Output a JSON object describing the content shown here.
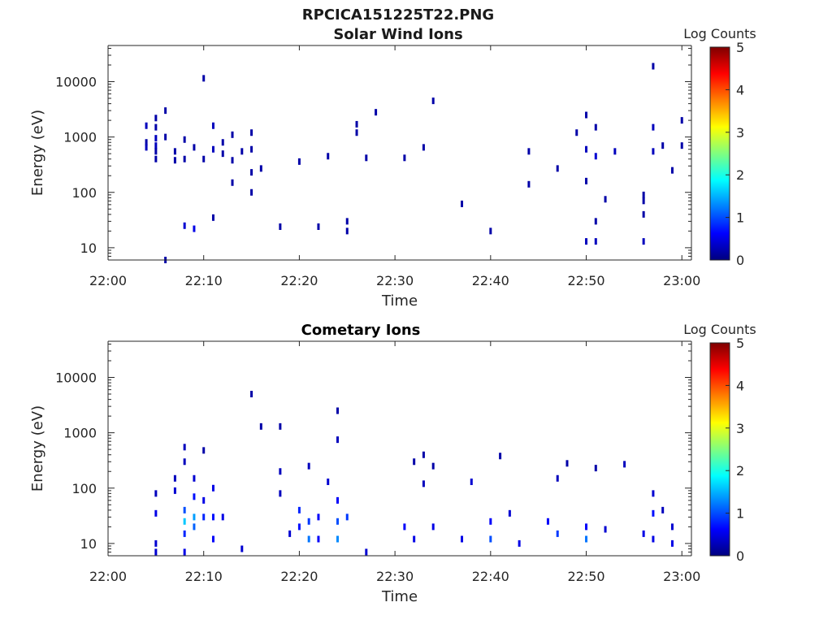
{
  "title": "RPCICA151225T22.PNG",
  "colors": {
    "axis": "#262626",
    "text": "#262626"
  },
  "colorbar": {
    "label": "Log Counts",
    "ticks": [
      "0",
      "1",
      "2",
      "3",
      "4",
      "5"
    ],
    "range": [
      0,
      5
    ]
  },
  "chart_data": [
    {
      "type": "heatmap",
      "title": "Solar Wind Ions",
      "xlabel": "Time",
      "ylabel": "Energy (eV)",
      "yscale": "log",
      "ylim": [
        6,
        45000
      ],
      "xlim": [
        "22:00",
        "23:01"
      ],
      "xticks": [
        "22:00",
        "22:10",
        "22:20",
        "22:30",
        "22:40",
        "22:50",
        "23:00"
      ],
      "yticks": [
        "10",
        "100",
        "1000",
        "10000"
      ],
      "cells": [
        {
          "t": "22:04",
          "e": 1600,
          "v": 0.3
        },
        {
          "t": "22:04",
          "e": 800,
          "v": 0.2
        },
        {
          "t": "22:04",
          "e": 650,
          "v": 0.3
        },
        {
          "t": "22:05",
          "e": 1500,
          "v": 0.2
        },
        {
          "t": "22:05",
          "e": 950,
          "v": 0.3
        },
        {
          "t": "22:05",
          "e": 700,
          "v": 0.3
        },
        {
          "t": "22:05",
          "e": 550,
          "v": 0.2
        },
        {
          "t": "22:05",
          "e": 400,
          "v": 0.2
        },
        {
          "t": "22:05",
          "e": 2200,
          "v": 0.2
        },
        {
          "t": "22:06",
          "e": 3000,
          "v": 0.2
        },
        {
          "t": "22:06",
          "e": 1000,
          "v": 0.2
        },
        {
          "t": "22:06",
          "e": 6,
          "v": 0.2
        },
        {
          "t": "22:07",
          "e": 550,
          "v": 0.2
        },
        {
          "t": "22:07",
          "e": 380,
          "v": 0.2
        },
        {
          "t": "22:08",
          "e": 900,
          "v": 0.2
        },
        {
          "t": "22:08",
          "e": 400,
          "v": 0.2
        },
        {
          "t": "22:08",
          "e": 25,
          "v": 0.4
        },
        {
          "t": "22:09",
          "e": 22,
          "v": 0.5
        },
        {
          "t": "22:09",
          "e": 650,
          "v": 0.2
        },
        {
          "t": "22:10",
          "e": 400,
          "v": 0.2
        },
        {
          "t": "22:10",
          "e": 11500,
          "v": 0.2
        },
        {
          "t": "22:11",
          "e": 1600,
          "v": 0.3
        },
        {
          "t": "22:11",
          "e": 600,
          "v": 0.3
        },
        {
          "t": "22:11",
          "e": 35,
          "v": 0.2
        },
        {
          "t": "22:12",
          "e": 500,
          "v": 0.2
        },
        {
          "t": "22:12",
          "e": 800,
          "v": 0.2
        },
        {
          "t": "22:13",
          "e": 1100,
          "v": 0.2
        },
        {
          "t": "22:13",
          "e": 380,
          "v": 0.2
        },
        {
          "t": "22:13",
          "e": 150,
          "v": 0.2
        },
        {
          "t": "22:14",
          "e": 550,
          "v": 0.2
        },
        {
          "t": "22:15",
          "e": 1200,
          "v": 0.2
        },
        {
          "t": "22:15",
          "e": 600,
          "v": 0.2
        },
        {
          "t": "22:15",
          "e": 100,
          "v": 0.2
        },
        {
          "t": "22:15",
          "e": 230,
          "v": 0.2
        },
        {
          "t": "22:16",
          "e": 270,
          "v": 0.2
        },
        {
          "t": "22:18",
          "e": 24,
          "v": 0.2
        },
        {
          "t": "22:20",
          "e": 360,
          "v": 0.2
        },
        {
          "t": "22:22",
          "e": 24,
          "v": 0.2
        },
        {
          "t": "22:23",
          "e": 450,
          "v": 0.2
        },
        {
          "t": "22:25",
          "e": 30,
          "v": 0.2
        },
        {
          "t": "22:25",
          "e": 20,
          "v": 0.2
        },
        {
          "t": "22:26",
          "e": 1700,
          "v": 0.2
        },
        {
          "t": "22:26",
          "e": 1200,
          "v": 0.2
        },
        {
          "t": "22:27",
          "e": 420,
          "v": 0.2
        },
        {
          "t": "22:28",
          "e": 2800,
          "v": 0.2
        },
        {
          "t": "22:31",
          "e": 420,
          "v": 0.2
        },
        {
          "t": "22:33",
          "e": 650,
          "v": 0.2
        },
        {
          "t": "22:34",
          "e": 4500,
          "v": 0.2
        },
        {
          "t": "22:37",
          "e": 62,
          "v": 0.2
        },
        {
          "t": "22:40",
          "e": 20,
          "v": 0.2
        },
        {
          "t": "22:44",
          "e": 550,
          "v": 0.2
        },
        {
          "t": "22:44",
          "e": 140,
          "v": 0.2
        },
        {
          "t": "22:47",
          "e": 270,
          "v": 0.2
        },
        {
          "t": "22:49",
          "e": 1200,
          "v": 0.2
        },
        {
          "t": "22:50",
          "e": 2500,
          "v": 0.2
        },
        {
          "t": "22:50",
          "e": 600,
          "v": 0.3
        },
        {
          "t": "22:50",
          "e": 13,
          "v": 0.3
        },
        {
          "t": "22:50",
          "e": 160,
          "v": 0.2
        },
        {
          "t": "22:51",
          "e": 450,
          "v": 0.4
        },
        {
          "t": "22:51",
          "e": 30,
          "v": 0.2
        },
        {
          "t": "22:51",
          "e": 13,
          "v": 0.3
        },
        {
          "t": "22:51",
          "e": 1500,
          "v": 0.2
        },
        {
          "t": "22:52",
          "e": 75,
          "v": 0.2
        },
        {
          "t": "22:53",
          "e": 550,
          "v": 0.3
        },
        {
          "t": "22:56",
          "e": 70,
          "v": 0.2
        },
        {
          "t": "22:56",
          "e": 40,
          "v": 0.2
        },
        {
          "t": "22:56",
          "e": 13,
          "v": 0.3
        },
        {
          "t": "22:56",
          "e": 90,
          "v": 0.2
        },
        {
          "t": "22:57",
          "e": 1500,
          "v": 0.3
        },
        {
          "t": "22:57",
          "e": 550,
          "v": 0.3
        },
        {
          "t": "22:57",
          "e": 19000,
          "v": 0.2
        },
        {
          "t": "22:58",
          "e": 700,
          "v": 0.2
        },
        {
          "t": "22:59",
          "e": 250,
          "v": 0.2
        },
        {
          "t": "23:00",
          "e": 2000,
          "v": 0.2
        },
        {
          "t": "23:00",
          "e": 700,
          "v": 0.2
        }
      ]
    },
    {
      "type": "heatmap",
      "title": "Cometary Ions",
      "xlabel": "Time",
      "ylabel": "Energy (eV)",
      "yscale": "log",
      "ylim": [
        6,
        45000
      ],
      "xlim": [
        "22:00",
        "23:01"
      ],
      "xticks": [
        "22:00",
        "22:10",
        "22:20",
        "22:30",
        "22:40",
        "22:50",
        "23:00"
      ],
      "yticks": [
        "10",
        "100",
        "1000",
        "10000"
      ],
      "cells": [
        {
          "t": "22:05",
          "e": 80,
          "v": 0.3
        },
        {
          "t": "22:05",
          "e": 10,
          "v": 0.4
        },
        {
          "t": "22:05",
          "e": 7,
          "v": 0.4
        },
        {
          "t": "22:05",
          "e": 35,
          "v": 0.5
        },
        {
          "t": "22:07",
          "e": 150,
          "v": 0.3
        },
        {
          "t": "22:07",
          "e": 90,
          "v": 0.4
        },
        {
          "t": "22:08",
          "e": 40,
          "v": 1.0
        },
        {
          "t": "22:08",
          "e": 25,
          "v": 1.6
        },
        {
          "t": "22:08",
          "e": 15,
          "v": 0.8
        },
        {
          "t": "22:08",
          "e": 300,
          "v": 0.3
        },
        {
          "t": "22:08",
          "e": 550,
          "v": 0.3
        },
        {
          "t": "22:08",
          "e": 7,
          "v": 0.5
        },
        {
          "t": "22:09",
          "e": 30,
          "v": 1.4
        },
        {
          "t": "22:09",
          "e": 20,
          "v": 1.1
        },
        {
          "t": "22:09",
          "e": 70,
          "v": 0.7
        },
        {
          "t": "22:09",
          "e": 150,
          "v": 0.4
        },
        {
          "t": "22:10",
          "e": 30,
          "v": 0.8
        },
        {
          "t": "22:10",
          "e": 480,
          "v": 0.2
        },
        {
          "t": "22:10",
          "e": 60,
          "v": 0.5
        },
        {
          "t": "22:11",
          "e": 12,
          "v": 0.6
        },
        {
          "t": "22:11",
          "e": 30,
          "v": 0.7
        },
        {
          "t": "22:11",
          "e": 100,
          "v": 0.5
        },
        {
          "t": "22:12",
          "e": 30,
          "v": 0.5
        },
        {
          "t": "22:14",
          "e": 8,
          "v": 0.4
        },
        {
          "t": "22:15",
          "e": 5000,
          "v": 0.2
        },
        {
          "t": "22:16",
          "e": 1300,
          "v": 0.2
        },
        {
          "t": "22:18",
          "e": 1300,
          "v": 0.2
        },
        {
          "t": "22:18",
          "e": 200,
          "v": 0.3
        },
        {
          "t": "22:18",
          "e": 80,
          "v": 0.3
        },
        {
          "t": "22:19",
          "e": 15,
          "v": 0.4
        },
        {
          "t": "22:20",
          "e": 40,
          "v": 0.8
        },
        {
          "t": "22:20",
          "e": 20,
          "v": 0.7
        },
        {
          "t": "22:21",
          "e": 12,
          "v": 1.2
        },
        {
          "t": "22:21",
          "e": 25,
          "v": 0.9
        },
        {
          "t": "22:21",
          "e": 250,
          "v": 0.3
        },
        {
          "t": "22:22",
          "e": 30,
          "v": 0.6
        },
        {
          "t": "22:22",
          "e": 12,
          "v": 0.6
        },
        {
          "t": "22:23",
          "e": 130,
          "v": 0.4
        },
        {
          "t": "22:24",
          "e": 60,
          "v": 0.6
        },
        {
          "t": "22:24",
          "e": 25,
          "v": 1.0
        },
        {
          "t": "22:24",
          "e": 12,
          "v": 1.3
        },
        {
          "t": "22:24",
          "e": 2500,
          "v": 0.2
        },
        {
          "t": "22:24",
          "e": 750,
          "v": 0.3
        },
        {
          "t": "22:25",
          "e": 30,
          "v": 0.9
        },
        {
          "t": "22:27",
          "e": 7,
          "v": 0.4
        },
        {
          "t": "22:31",
          "e": 20,
          "v": 0.6
        },
        {
          "t": "22:32",
          "e": 300,
          "v": 0.2
        },
        {
          "t": "22:32",
          "e": 12,
          "v": 0.5
        },
        {
          "t": "22:33",
          "e": 400,
          "v": 0.2
        },
        {
          "t": "22:33",
          "e": 120,
          "v": 0.3
        },
        {
          "t": "22:34",
          "e": 20,
          "v": 0.5
        },
        {
          "t": "22:34",
          "e": 250,
          "v": 0.2
        },
        {
          "t": "22:37",
          "e": 12,
          "v": 0.5
        },
        {
          "t": "22:38",
          "e": 130,
          "v": 0.4
        },
        {
          "t": "22:40",
          "e": 25,
          "v": 0.6
        },
        {
          "t": "22:40",
          "e": 12,
          "v": 1.0
        },
        {
          "t": "22:41",
          "e": 380,
          "v": 0.2
        },
        {
          "t": "22:42",
          "e": 35,
          "v": 0.4
        },
        {
          "t": "22:43",
          "e": 10,
          "v": 0.5
        },
        {
          "t": "22:46",
          "e": 25,
          "v": 0.6
        },
        {
          "t": "22:47",
          "e": 15,
          "v": 0.9
        },
        {
          "t": "22:47",
          "e": 150,
          "v": 0.3
        },
        {
          "t": "22:48",
          "e": 280,
          "v": 0.2
        },
        {
          "t": "22:50",
          "e": 12,
          "v": 1.2
        },
        {
          "t": "22:50",
          "e": 20,
          "v": 0.6
        },
        {
          "t": "22:51",
          "e": 230,
          "v": 0.2
        },
        {
          "t": "22:52",
          "e": 18,
          "v": 0.4
        },
        {
          "t": "22:54",
          "e": 270,
          "v": 0.3
        },
        {
          "t": "22:56",
          "e": 15,
          "v": 0.5
        },
        {
          "t": "22:57",
          "e": 80,
          "v": 0.4
        },
        {
          "t": "22:57",
          "e": 35,
          "v": 0.7
        },
        {
          "t": "22:57",
          "e": 12,
          "v": 0.5
        },
        {
          "t": "22:58",
          "e": 40,
          "v": 0.3
        },
        {
          "t": "22:59",
          "e": 20,
          "v": 0.4
        },
        {
          "t": "22:59",
          "e": 10,
          "v": 0.5
        }
      ]
    }
  ]
}
